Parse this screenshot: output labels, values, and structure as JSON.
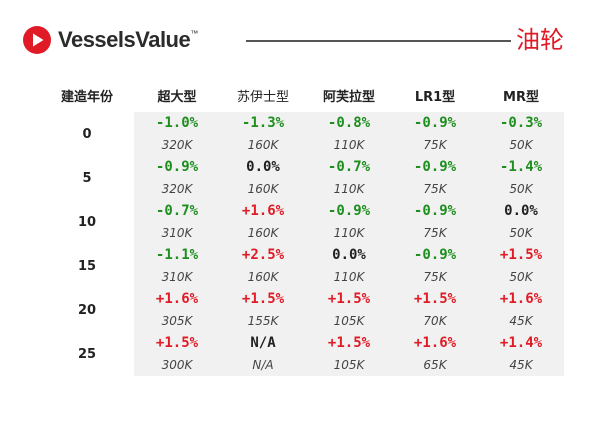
{
  "brand": {
    "name": "VesselsValue",
    "tm": "™",
    "color": "#e01b26"
  },
  "title": "油轮",
  "columns": {
    "year": "建造年份",
    "types": [
      "超大型",
      "苏伊士型",
      "阿芙拉型",
      "LR1型",
      "MR型"
    ]
  },
  "rows": [
    {
      "year": "0",
      "changes": [
        "-1.0%",
        "-1.3%",
        "-0.8%",
        "-0.9%",
        "-0.3%"
      ],
      "values": [
        "320K",
        "160K",
        "110K",
        "75K",
        "50K"
      ]
    },
    {
      "year": "5",
      "changes": [
        "-0.9%",
        "0.0%",
        "-0.7%",
        "-0.9%",
        "-1.4%"
      ],
      "values": [
        "320K",
        "160K",
        "110K",
        "75K",
        "50K"
      ]
    },
    {
      "year": "10",
      "changes": [
        "-0.7%",
        "+1.6%",
        "-0.9%",
        "-0.9%",
        "0.0%"
      ],
      "values": [
        "310K",
        "160K",
        "110K",
        "75K",
        "50K"
      ]
    },
    {
      "year": "15",
      "changes": [
        "-1.1%",
        "+2.5%",
        "0.0%",
        "-0.9%",
        "+1.5%"
      ],
      "values": [
        "310K",
        "160K",
        "110K",
        "75K",
        "50K"
      ]
    },
    {
      "year": "20",
      "changes": [
        "+1.6%",
        "+1.5%",
        "+1.5%",
        "+1.5%",
        "+1.6%"
      ],
      "values": [
        "305K",
        "155K",
        "105K",
        "70K",
        "45K"
      ]
    },
    {
      "year": "25",
      "changes": [
        "+1.5%",
        "N/A",
        "+1.5%",
        "+1.6%",
        "+1.4%"
      ],
      "values": [
        "300K",
        "N/A",
        "105K",
        "65K",
        "45K"
      ]
    }
  ],
  "colors": {
    "negative": "#1e8e1e",
    "positive": "#e01b26",
    "neutral": "#222222",
    "cell_bg": "#f1f1f1"
  }
}
